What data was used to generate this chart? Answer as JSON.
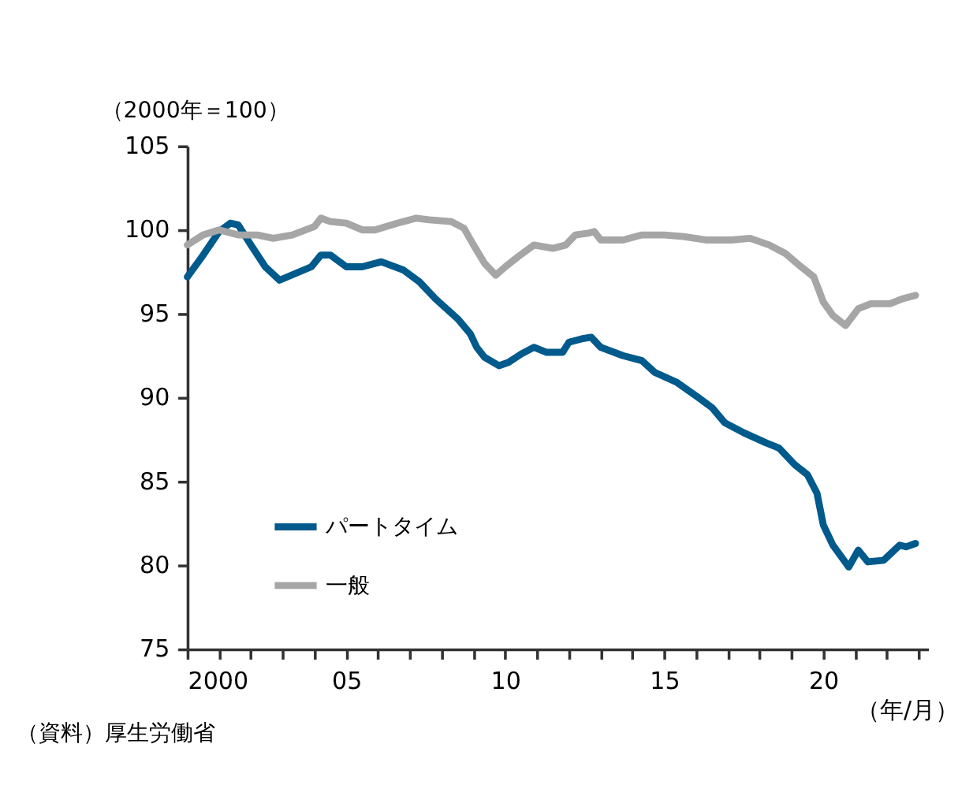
{
  "chart_data": {
    "type": "line",
    "ylabel": "（2000年＝100）",
    "xlabel": "（年/月）",
    "annotations": [
      "（資料）厚生労働省"
    ],
    "xlim": [
      2000,
      2023.3
    ],
    "xticks": [
      {
        "value": 2000,
        "label": "2000"
      },
      {
        "value": 2001,
        "label": null
      },
      {
        "value": 2002,
        "label": null
      },
      {
        "value": 2003,
        "label": null
      },
      {
        "value": 2004,
        "label": null
      },
      {
        "value": 2005,
        "label": "05"
      },
      {
        "value": 2006,
        "label": null
      },
      {
        "value": 2007,
        "label": null
      },
      {
        "value": 2008,
        "label": null
      },
      {
        "value": 2009,
        "label": null
      },
      {
        "value": 2010,
        "label": "10"
      },
      {
        "value": 2011,
        "label": null
      },
      {
        "value": 2012,
        "label": null
      },
      {
        "value": 2013,
        "label": null
      },
      {
        "value": 2014,
        "label": null
      },
      {
        "value": 2015,
        "label": "15"
      },
      {
        "value": 2016,
        "label": null
      },
      {
        "value": 2017,
        "label": null
      },
      {
        "value": 2018,
        "label": null
      },
      {
        "value": 2019,
        "label": null
      },
      {
        "value": 2020,
        "label": "20"
      },
      {
        "value": 2021,
        "label": null
      },
      {
        "value": 2022,
        "label": null
      },
      {
        "value": 2023,
        "label": null
      }
    ],
    "ylim": [
      75,
      105
    ],
    "yticks": [
      75,
      80,
      85,
      90,
      95,
      100,
      105
    ],
    "grid": false,
    "legend": "bottom left",
    "marker": "none",
    "line_style": "solid",
    "series": [
      {
        "name": "パートタイム",
        "color": "#005a8c",
        "x": [
          2000.0,
          2000.5,
          2001.0,
          2001.35,
          2001.6,
          2002.0,
          2002.45,
          2002.9,
          2003.4,
          2003.9,
          2004.2,
          2004.5,
          2005.0,
          2005.5,
          2006.1,
          2006.8,
          2007.3,
          2007.8,
          2008.5,
          2008.9,
          2009.1,
          2009.35,
          2009.8,
          2010.1,
          2010.5,
          2010.9,
          2011.3,
          2011.8,
          2012.0,
          2012.4,
          2012.7,
          2013.0,
          2013.7,
          2014.3,
          2014.7,
          2015.4,
          2016.0,
          2016.5,
          2016.9,
          2017.5,
          2018.2,
          2018.6,
          2019.1,
          2019.5,
          2019.8,
          2020.0,
          2020.3,
          2020.8,
          2021.1,
          2021.4,
          2021.9,
          2022.4,
          2022.6,
          2022.9
        ],
        "values": [
          97.2,
          98.5,
          99.9,
          100.4,
          100.3,
          99.1,
          97.8,
          97.0,
          97.4,
          97.8,
          98.5,
          98.5,
          97.8,
          97.8,
          98.1,
          97.6,
          96.9,
          95.9,
          94.7,
          93.8,
          93.0,
          92.4,
          91.9,
          92.1,
          92.6,
          93.0,
          92.7,
          92.7,
          93.3,
          93.5,
          93.6,
          93.0,
          92.5,
          92.2,
          91.5,
          90.9,
          90.1,
          89.4,
          88.5,
          87.9,
          87.3,
          87.0,
          86.0,
          85.4,
          84.3,
          82.4,
          81.2,
          79.9,
          80.9,
          80.2,
          80.3,
          81.2,
          81.1,
          81.3
        ]
      },
      {
        "name": "一般",
        "color": "#a6a6a6",
        "x": [
          2000.0,
          2000.5,
          2001.0,
          2001.6,
          2002.2,
          2002.7,
          2003.3,
          2004.0,
          2004.2,
          2004.5,
          2005.0,
          2005.5,
          2005.9,
          2006.6,
          2007.2,
          2007.6,
          2008.3,
          2008.7,
          2009.0,
          2009.35,
          2009.7,
          2010.0,
          2010.4,
          2010.9,
          2011.5,
          2011.9,
          2012.2,
          2012.6,
          2012.8,
          2013.0,
          2013.7,
          2014.3,
          2015.0,
          2015.6,
          2016.3,
          2017.1,
          2017.7,
          2018.3,
          2018.8,
          2019.3,
          2019.7,
          2020.0,
          2020.3,
          2020.7,
          2021.1,
          2021.5,
          2022.1,
          2022.5,
          2022.9
        ],
        "values": [
          99.1,
          99.7,
          100.0,
          99.7,
          99.7,
          99.5,
          99.7,
          100.2,
          100.7,
          100.5,
          100.4,
          100.0,
          100.0,
          100.4,
          100.7,
          100.6,
          100.5,
          100.1,
          99.1,
          98.0,
          97.3,
          97.8,
          98.4,
          99.1,
          98.9,
          99.1,
          99.7,
          99.8,
          99.9,
          99.4,
          99.4,
          99.7,
          99.7,
          99.6,
          99.4,
          99.4,
          99.5,
          99.1,
          98.6,
          97.8,
          97.2,
          95.7,
          94.9,
          94.3,
          95.3,
          95.6,
          95.6,
          95.9,
          96.1
        ]
      }
    ]
  }
}
